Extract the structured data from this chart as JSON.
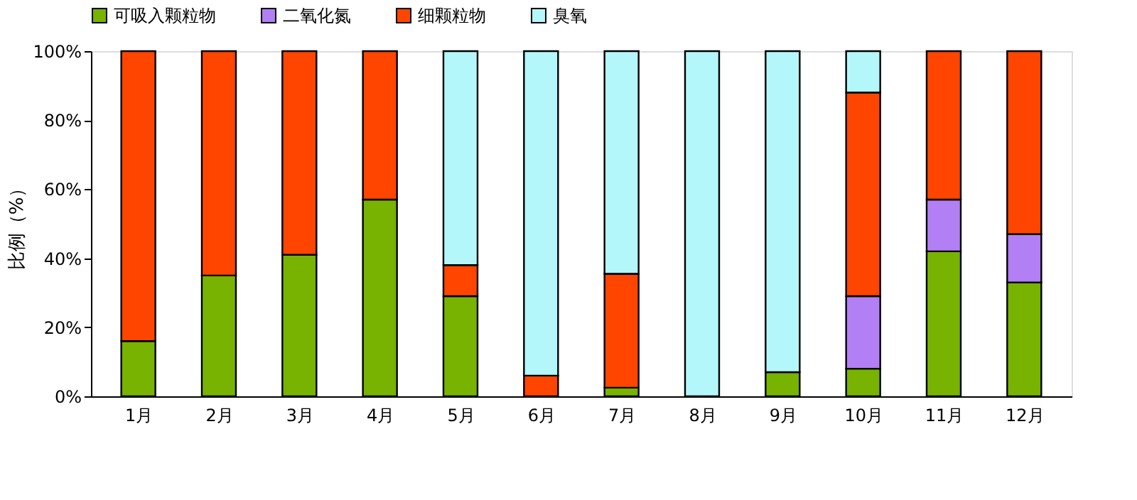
{
  "chart_data": {
    "type": "bar",
    "stacked": true,
    "ylabel": "比例（%）",
    "categories": [
      "1月",
      "2月",
      "3月",
      "4月",
      "5月",
      "6月",
      "7月",
      "8月",
      "9月",
      "10月",
      "11月",
      "12月"
    ],
    "series": [
      {
        "name": "可吸入颗粒物",
        "color": "#77b300",
        "values": [
          16,
          35,
          41,
          57,
          29,
          null,
          2.5,
          null,
          7,
          8,
          42,
          33
        ]
      },
      {
        "name": "二氧化氮",
        "color": "#b27ff5",
        "values": [
          null,
          null,
          null,
          null,
          null,
          null,
          null,
          null,
          null,
          21,
          15,
          14
        ]
      },
      {
        "name": "细颗粒物",
        "color": "#ff4500",
        "values": [
          84,
          65,
          59,
          43,
          9,
          6,
          33,
          null,
          null,
          59,
          43,
          53
        ]
      },
      {
        "name": "臭氧",
        "color": "#b3f7fb",
        "values": [
          null,
          null,
          null,
          null,
          62,
          94,
          64.5,
          100,
          93,
          12,
          null,
          null
        ]
      }
    ],
    "ylim": [
      0,
      100
    ],
    "yticks": [
      {
        "value": 0,
        "label": "0%"
      },
      {
        "value": 20,
        "label": "20%"
      },
      {
        "value": 40,
        "label": "40%"
      },
      {
        "value": 60,
        "label": "60%"
      },
      {
        "value": 80,
        "label": "80%"
      },
      {
        "value": 100,
        "label": "100%"
      }
    ],
    "grid": false,
    "legend": "top"
  }
}
